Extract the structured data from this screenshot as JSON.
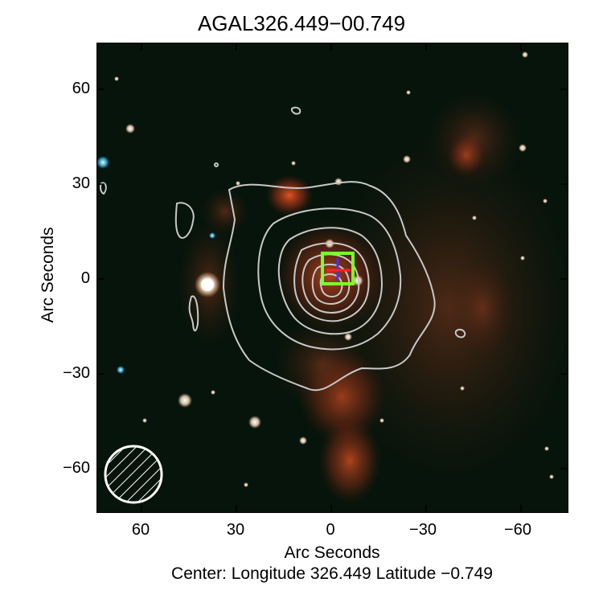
{
  "title": "AGAL326.449−00.749",
  "x_axis": {
    "label": "Arc Seconds",
    "ticks": [
      "60",
      "30",
      "0",
      "−30",
      "−60"
    ]
  },
  "y_axis": {
    "label": "Arc Seconds",
    "ticks": [
      "60",
      "30",
      "0",
      "−30",
      "−60"
    ]
  },
  "caption": "Center:  Longitude 326.449 Latitude −0.749",
  "colors": {
    "background": "#06140b",
    "nebula": "#e0481e",
    "contour": "#c8c8c8",
    "marker_box": "#7cff2a",
    "marker_cross_red": "#ff2020",
    "marker_cross_blue": "#3030ff",
    "beam": "#ffffff"
  }
}
